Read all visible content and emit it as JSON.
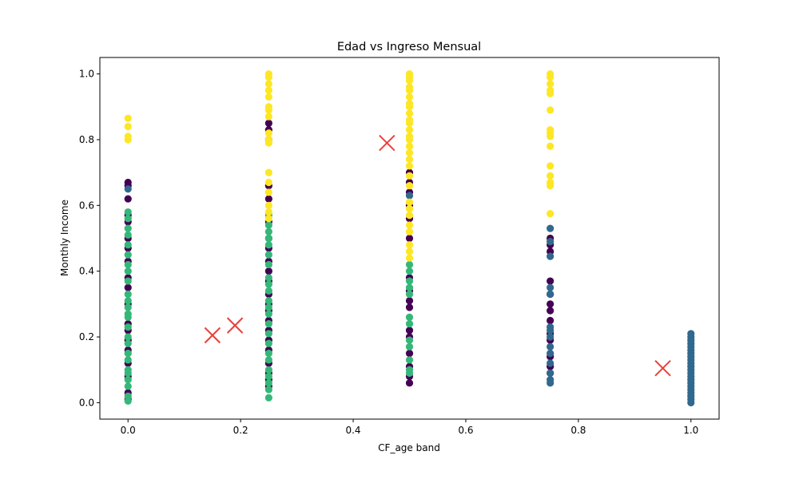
{
  "chart_data": {
    "type": "scatter",
    "title": "Edad vs Ingreso Mensual",
    "xlabel": "CF_age band",
    "ylabel": "Monthly Income",
    "xlim": [
      -0.05,
      1.05
    ],
    "ylim": [
      -0.05,
      1.05
    ],
    "xticks": [
      0.0,
      0.2,
      0.4,
      0.6,
      0.8,
      1.0
    ],
    "xtick_labels": [
      "0.0",
      "0.2",
      "0.4",
      "0.6",
      "0.8",
      "1.0"
    ],
    "yticks": [
      0.0,
      0.2,
      0.4,
      0.6,
      0.8,
      1.0
    ],
    "ytick_labels": [
      "0.0",
      "0.2",
      "0.4",
      "0.6",
      "0.8",
      "1.0"
    ],
    "grid": false,
    "legend": "none",
    "colors": {
      "cluster_0": "#440154",
      "cluster_1": "#31688e",
      "cluster_2": "#35b779",
      "cluster_3": "#fde725",
      "centroid": "#e8413c"
    },
    "series": [
      {
        "color_key": "cluster_0",
        "points": [
          [
            0,
            0.67
          ],
          [
            0,
            0.66
          ],
          [
            0,
            0.62
          ],
          [
            0,
            0.57
          ],
          [
            0,
            0.55
          ],
          [
            0,
            0.5
          ],
          [
            0,
            0.47
          ],
          [
            0,
            0.43
          ],
          [
            0,
            0.38
          ],
          [
            0,
            0.35
          ],
          [
            0,
            0.3
          ],
          [
            0,
            0.24
          ],
          [
            0,
            0.22
          ],
          [
            0,
            0.19
          ],
          [
            0,
            0.16
          ],
          [
            0,
            0.12
          ],
          [
            0,
            0.08
          ],
          [
            0,
            0.03
          ],
          [
            0,
            0.01
          ],
          [
            0.25,
            0.85
          ],
          [
            0.25,
            0.83
          ],
          [
            0.25,
            0.8
          ],
          [
            0.25,
            0.66
          ],
          [
            0.25,
            0.62
          ],
          [
            0.25,
            0.55
          ],
          [
            0.25,
            0.5
          ],
          [
            0.25,
            0.47
          ],
          [
            0.25,
            0.43
          ],
          [
            0.25,
            0.4
          ],
          [
            0.25,
            0.37
          ],
          [
            0.25,
            0.33
          ],
          [
            0.25,
            0.3
          ],
          [
            0.25,
            0.28
          ],
          [
            0.25,
            0.25
          ],
          [
            0.25,
            0.22
          ],
          [
            0.25,
            0.19
          ],
          [
            0.25,
            0.16
          ],
          [
            0.25,
            0.12
          ],
          [
            0.25,
            0.09
          ],
          [
            0.25,
            0.07
          ],
          [
            0.25,
            0.05
          ],
          [
            0.5,
            0.7
          ],
          [
            0.5,
            0.67
          ],
          [
            0.5,
            0.64
          ],
          [
            0.5,
            0.6
          ],
          [
            0.5,
            0.56
          ],
          [
            0.5,
            0.5
          ],
          [
            0.5,
            0.38
          ],
          [
            0.5,
            0.34
          ],
          [
            0.5,
            0.31
          ],
          [
            0.5,
            0.29
          ],
          [
            0.5,
            0.22
          ],
          [
            0.5,
            0.2
          ],
          [
            0.5,
            0.15
          ],
          [
            0.5,
            0.11
          ],
          [
            0.5,
            0.08
          ],
          [
            0.5,
            0.06
          ],
          [
            0.75,
            0.5
          ],
          [
            0.75,
            0.48
          ],
          [
            0.75,
            0.46
          ],
          [
            0.75,
            0.37
          ],
          [
            0.75,
            0.33
          ],
          [
            0.75,
            0.3
          ],
          [
            0.75,
            0.28
          ],
          [
            0.75,
            0.25
          ],
          [
            0.75,
            0.21
          ],
          [
            0.75,
            0.19
          ],
          [
            0.75,
            0.14
          ],
          [
            0.75,
            0.11
          ],
          [
            0.75,
            0.09
          ]
        ]
      },
      {
        "color_key": "cluster_1",
        "points": [
          [
            0,
            0.65
          ],
          [
            0.5,
            0.63
          ],
          [
            0.75,
            0.53
          ],
          [
            0.75,
            0.49
          ],
          [
            0.75,
            0.445
          ],
          [
            0.75,
            0.35
          ],
          [
            0.75,
            0.33
          ],
          [
            0.75,
            0.23
          ],
          [
            0.75,
            0.22
          ],
          [
            0.75,
            0.2
          ],
          [
            0.75,
            0.17
          ],
          [
            0.75,
            0.15
          ],
          [
            0.75,
            0.12
          ],
          [
            0.75,
            0.09
          ],
          [
            0.75,
            0.07
          ],
          [
            0.75,
            0.06
          ],
          [
            1,
            0.21
          ],
          [
            1,
            0.2
          ],
          [
            1,
            0.19
          ],
          [
            1,
            0.18
          ],
          [
            1,
            0.17
          ],
          [
            1,
            0.16
          ],
          [
            1,
            0.15
          ],
          [
            1,
            0.14
          ],
          [
            1,
            0.13
          ],
          [
            1,
            0.12
          ],
          [
            1,
            0.11
          ],
          [
            1,
            0.1
          ],
          [
            1,
            0.09
          ],
          [
            1,
            0.08
          ],
          [
            1,
            0.07
          ],
          [
            1,
            0.06
          ],
          [
            1,
            0.05
          ],
          [
            1,
            0.04
          ],
          [
            1,
            0.03
          ],
          [
            1,
            0.02
          ],
          [
            1,
            0.01
          ],
          [
            1,
            0.0
          ]
        ]
      },
      {
        "color_key": "cluster_2",
        "points": [
          [
            0,
            0.58
          ],
          [
            0,
            0.56
          ],
          [
            0,
            0.53
          ],
          [
            0,
            0.51
          ],
          [
            0,
            0.48
          ],
          [
            0,
            0.45
          ],
          [
            0,
            0.42
          ],
          [
            0,
            0.4
          ],
          [
            0,
            0.37
          ],
          [
            0,
            0.33
          ],
          [
            0,
            0.31
          ],
          [
            0,
            0.29
          ],
          [
            0,
            0.27
          ],
          [
            0,
            0.26
          ],
          [
            0,
            0.23
          ],
          [
            0,
            0.2
          ],
          [
            0,
            0.18
          ],
          [
            0,
            0.15
          ],
          [
            0,
            0.13
          ],
          [
            0,
            0.1
          ],
          [
            0,
            0.09
          ],
          [
            0,
            0.07
          ],
          [
            0,
            0.05
          ],
          [
            0,
            0.02
          ],
          [
            0,
            0.005
          ],
          [
            0.25,
            0.57
          ],
          [
            0.25,
            0.54
          ],
          [
            0.25,
            0.52
          ],
          [
            0.25,
            0.5
          ],
          [
            0.25,
            0.48
          ],
          [
            0.25,
            0.45
          ],
          [
            0.25,
            0.42
          ],
          [
            0.25,
            0.38
          ],
          [
            0.25,
            0.36
          ],
          [
            0.25,
            0.34
          ],
          [
            0.25,
            0.31
          ],
          [
            0.25,
            0.29
          ],
          [
            0.25,
            0.27
          ],
          [
            0.25,
            0.24
          ],
          [
            0.25,
            0.21
          ],
          [
            0.25,
            0.18
          ],
          [
            0.25,
            0.15
          ],
          [
            0.25,
            0.13
          ],
          [
            0.25,
            0.1
          ],
          [
            0.25,
            0.08
          ],
          [
            0.25,
            0.06
          ],
          [
            0.25,
            0.04
          ],
          [
            0.25,
            0.015
          ],
          [
            0.5,
            0.42
          ],
          [
            0.5,
            0.4
          ],
          [
            0.5,
            0.37
          ],
          [
            0.5,
            0.35
          ],
          [
            0.5,
            0.33
          ],
          [
            0.5,
            0.26
          ],
          [
            0.5,
            0.24
          ],
          [
            0.5,
            0.19
          ],
          [
            0.5,
            0.17
          ],
          [
            0.5,
            0.13
          ],
          [
            0.5,
            0.1
          ],
          [
            0.5,
            0.09
          ]
        ]
      },
      {
        "color_key": "cluster_3",
        "points": [
          [
            0,
            0.865
          ],
          [
            0,
            0.84
          ],
          [
            0,
            0.81
          ],
          [
            0,
            0.8
          ],
          [
            0.25,
            1.0
          ],
          [
            0.25,
            0.99
          ],
          [
            0.25,
            0.97
          ],
          [
            0.25,
            0.95
          ],
          [
            0.25,
            0.93
          ],
          [
            0.25,
            0.9
          ],
          [
            0.25,
            0.89
          ],
          [
            0.25,
            0.87
          ],
          [
            0.25,
            0.82
          ],
          [
            0.25,
            0.8
          ],
          [
            0.25,
            0.79
          ],
          [
            0.25,
            0.7
          ],
          [
            0.25,
            0.67
          ],
          [
            0.25,
            0.64
          ],
          [
            0.25,
            0.6
          ],
          [
            0.25,
            0.58
          ],
          [
            0.25,
            0.56
          ],
          [
            0.5,
            1.0
          ],
          [
            0.5,
            0.99
          ],
          [
            0.5,
            0.98
          ],
          [
            0.5,
            0.96
          ],
          [
            0.5,
            0.95
          ],
          [
            0.5,
            0.93
          ],
          [
            0.5,
            0.91
          ],
          [
            0.5,
            0.9
          ],
          [
            0.5,
            0.88
          ],
          [
            0.5,
            0.86
          ],
          [
            0.5,
            0.85
          ],
          [
            0.5,
            0.83
          ],
          [
            0.5,
            0.81
          ],
          [
            0.5,
            0.8
          ],
          [
            0.5,
            0.78
          ],
          [
            0.5,
            0.76
          ],
          [
            0.5,
            0.74
          ],
          [
            0.5,
            0.72
          ],
          [
            0.5,
            0.69
          ],
          [
            0.5,
            0.66
          ],
          [
            0.5,
            0.61
          ],
          [
            0.5,
            0.59
          ],
          [
            0.5,
            0.57
          ],
          [
            0.5,
            0.54
          ],
          [
            0.5,
            0.52
          ],
          [
            0.5,
            0.48
          ],
          [
            0.5,
            0.46
          ],
          [
            0.5,
            0.44
          ],
          [
            0.75,
            1.0
          ],
          [
            0.75,
            0.99
          ],
          [
            0.75,
            0.97
          ],
          [
            0.75,
            0.95
          ],
          [
            0.75,
            0.94
          ],
          [
            0.75,
            0.89
          ],
          [
            0.75,
            0.83
          ],
          [
            0.75,
            0.82
          ],
          [
            0.75,
            0.81
          ],
          [
            0.75,
            0.78
          ],
          [
            0.75,
            0.72
          ],
          [
            0.75,
            0.69
          ],
          [
            0.75,
            0.67
          ],
          [
            0.75,
            0.66
          ],
          [
            0.75,
            0.575
          ]
        ]
      }
    ],
    "centroids": [
      [
        0.15,
        0.205
      ],
      [
        0.19,
        0.235
      ],
      [
        0.46,
        0.79
      ],
      [
        0.95,
        0.105
      ]
    ]
  }
}
